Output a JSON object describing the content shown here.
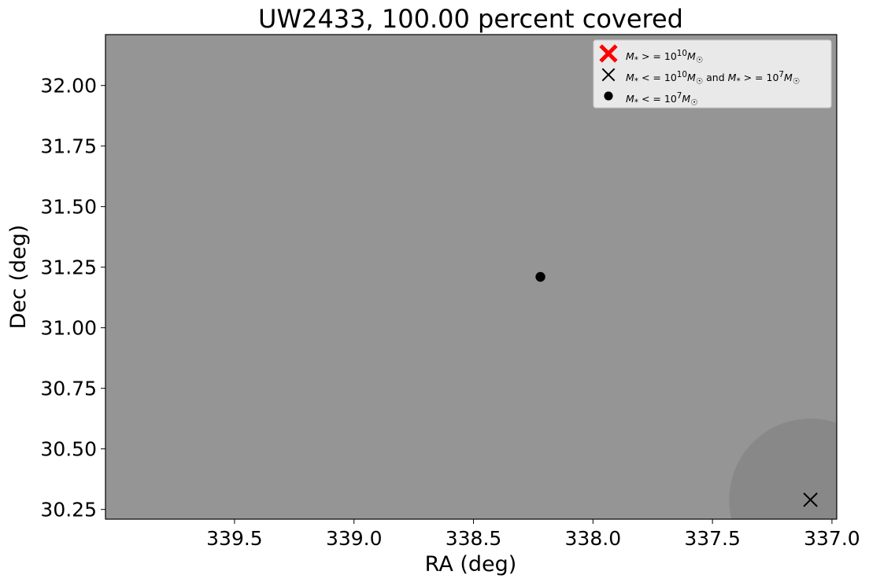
{
  "chart_data": {
    "type": "scatter",
    "title": "UW2433, 100.00 percent covered",
    "xlabel": "RA (deg)",
    "ylabel": "Dec (deg)",
    "xlim": [
      340.04,
      336.98
    ],
    "ylim": [
      30.21,
      32.21
    ],
    "x_inverted": true,
    "xticks": [
      339.5,
      339.0,
      338.5,
      338.0,
      337.5,
      337.0
    ],
    "xtick_labels": [
      "339.5",
      "339.0",
      "338.5",
      "338.0",
      "337.5",
      "337.0"
    ],
    "yticks": [
      30.25,
      30.5,
      30.75,
      31.0,
      31.25,
      31.5,
      31.75,
      32.0
    ],
    "ytick_labels": [
      "30.25",
      "30.50",
      "30.75",
      "31.00",
      "31.25",
      "31.50",
      "31.75",
      "32.00"
    ],
    "background_color": "#959595",
    "coverage_circle": {
      "ra": 337.09,
      "dec": 30.29,
      "radius_deg": 0.34,
      "color": "#888888"
    },
    "grid": false,
    "legend_position": "top-right",
    "legend": [
      {
        "label": "M* >= 10^10 M☉",
        "label_html": "<i>M</i><sub>*</sub> &gt; = 10<sup>10</sup><i>M</i><sub>☉</sub>",
        "marker": "X-filled",
        "color": "#ff0000"
      },
      {
        "label": "M* <= 10^10 M☉ and M* >= 10^7 M☉",
        "label_html": "<i>M</i><sub>*</sub> &lt; = 10<sup>10</sup><i>M</i><sub>☉</sub> and <i>M</i><sub>*</sub> &gt; = 10<sup>7</sup><i>M</i><sub>☉</sub>",
        "marker": "x",
        "color": "#000000"
      },
      {
        "label": "M* <= 10^7 M☉",
        "label_html": "<i>M</i><sub>*</sub> &lt; = 10<sup>7</sup><i>M</i><sub>☉</sub>",
        "marker": "o",
        "color": "#000000"
      }
    ],
    "series": [
      {
        "name": "M* >= 10^10 M☉",
        "marker": "X-filled",
        "color": "#ff0000",
        "points": []
      },
      {
        "name": "M* <= 10^10 M☉ and M* >= 10^7 M☉",
        "marker": "x",
        "color": "#000000",
        "points": [
          {
            "x": 337.09,
            "y": 30.29
          }
        ]
      },
      {
        "name": "M* <= 10^7 M☉",
        "marker": "o",
        "color": "#000000",
        "points": [
          {
            "x": 338.22,
            "y": 31.21
          }
        ]
      }
    ]
  }
}
